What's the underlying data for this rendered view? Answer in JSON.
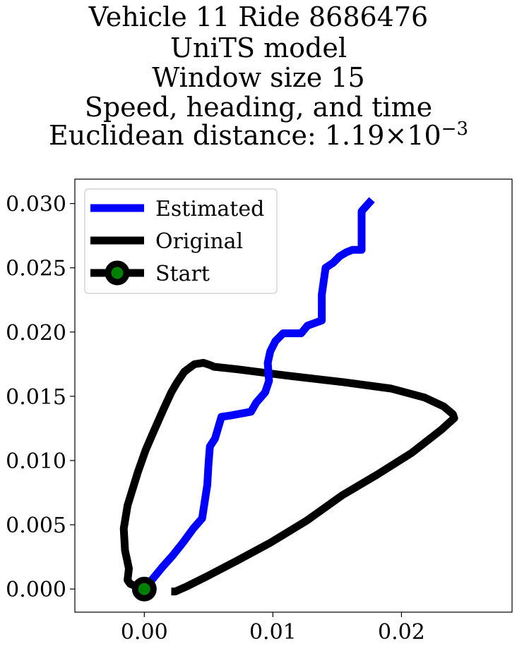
{
  "chart_data": {
    "type": "line",
    "title_lines": [
      "Vehicle 11 Ride 8686476",
      "UniTS model",
      "Window size 15",
      "Speed, heading, and time"
    ],
    "distance_label": "Euclidean distance: ",
    "distance_value": "1.19",
    "distance_times": "×",
    "distance_base": "10",
    "distance_exponent": "−3",
    "xlabel": "",
    "ylabel": "",
    "xlim": [
      -0.0054,
      0.0286
    ],
    "ylim": [
      -0.0018,
      0.0319
    ],
    "x_ticks": [
      0.0,
      0.01,
      0.02
    ],
    "x_tick_labels": [
      "0.00",
      "0.01",
      "0.02"
    ],
    "y_ticks": [
      0.0,
      0.005,
      0.01,
      0.015,
      0.02,
      0.025,
      0.03
    ],
    "y_tick_labels": [
      "0.000",
      "0.005",
      "0.010",
      "0.015",
      "0.020",
      "0.025",
      "0.030"
    ],
    "grid": false,
    "legend_position": "upper-left",
    "colors": {
      "estimated": "#0000ff",
      "original": "#000000",
      "start_fill": "#008000",
      "start_edge": "#000000"
    },
    "series": [
      {
        "name": "Estimated",
        "points": [
          [
            0.0,
            0.0
          ],
          [
            0.0014,
            0.0017
          ],
          [
            0.0022,
            0.0026
          ],
          [
            0.003,
            0.0036
          ],
          [
            0.0038,
            0.0047
          ],
          [
            0.0045,
            0.0055
          ],
          [
            0.0049,
            0.0081
          ],
          [
            0.005,
            0.0098
          ],
          [
            0.0051,
            0.0111
          ],
          [
            0.0055,
            0.0117
          ],
          [
            0.006,
            0.0134
          ],
          [
            0.0067,
            0.0135
          ],
          [
            0.0083,
            0.0138
          ],
          [
            0.0087,
            0.0145
          ],
          [
            0.0094,
            0.0153
          ],
          [
            0.0097,
            0.0162
          ],
          [
            0.0096,
            0.0176
          ],
          [
            0.0098,
            0.0185
          ],
          [
            0.0102,
            0.0193
          ],
          [
            0.0108,
            0.0199
          ],
          [
            0.0122,
            0.0199
          ],
          [
            0.0127,
            0.0205
          ],
          [
            0.0138,
            0.0209
          ],
          [
            0.0138,
            0.0229
          ],
          [
            0.0141,
            0.025
          ],
          [
            0.0147,
            0.0254
          ],
          [
            0.0152,
            0.0259
          ],
          [
            0.0157,
            0.0262
          ],
          [
            0.0162,
            0.0264
          ],
          [
            0.0169,
            0.0264
          ],
          [
            0.0169,
            0.0294
          ],
          [
            0.0177,
            0.0303
          ]
        ]
      },
      {
        "name": "Original",
        "points": [
          [
            0.0021,
            -0.0002
          ],
          [
            0.0024,
            -0.0002
          ],
          [
            0.0033,
            0.0002
          ],
          [
            0.0049,
            0.001
          ],
          [
            0.0072,
            0.0022
          ],
          [
            0.0098,
            0.0036
          ],
          [
            0.0126,
            0.0053
          ],
          [
            0.0154,
            0.0073
          ],
          [
            0.0181,
            0.0089
          ],
          [
            0.0208,
            0.0106
          ],
          [
            0.0231,
            0.0124
          ],
          [
            0.0241,
            0.0133
          ],
          [
            0.024,
            0.0136
          ],
          [
            0.0233,
            0.0142
          ],
          [
            0.0218,
            0.0149
          ],
          [
            0.0192,
            0.0156
          ],
          [
            0.0155,
            0.0161
          ],
          [
            0.0112,
            0.0166
          ],
          [
            0.0072,
            0.0171
          ],
          [
            0.0054,
            0.0173
          ],
          [
            0.0052,
            0.0174
          ],
          [
            0.0046,
            0.0176
          ],
          [
            0.0039,
            0.0175
          ],
          [
            0.0035,
            0.0172
          ],
          [
            0.0031,
            0.0169
          ],
          [
            0.0025,
            0.016
          ],
          [
            0.0021,
            0.0153
          ],
          [
            0.0015,
            0.014
          ],
          [
            0.0007,
            0.0122
          ],
          [
            0.0001,
            0.0108
          ],
          [
            -0.0005,
            0.0091
          ],
          [
            -0.0013,
            0.0065
          ],
          [
            -0.0016,
            0.0047
          ],
          [
            -0.0015,
            0.003
          ],
          [
            -0.0012,
            0.0016
          ],
          [
            -0.0013,
            0.0007
          ],
          [
            -0.0011,
            0.0004
          ],
          [
            -0.0006,
            0.0002
          ],
          [
            0.0,
            0.0
          ]
        ]
      },
      {
        "name": "Start",
        "points": [
          [
            0.0,
            0.0
          ]
        ]
      }
    ]
  }
}
